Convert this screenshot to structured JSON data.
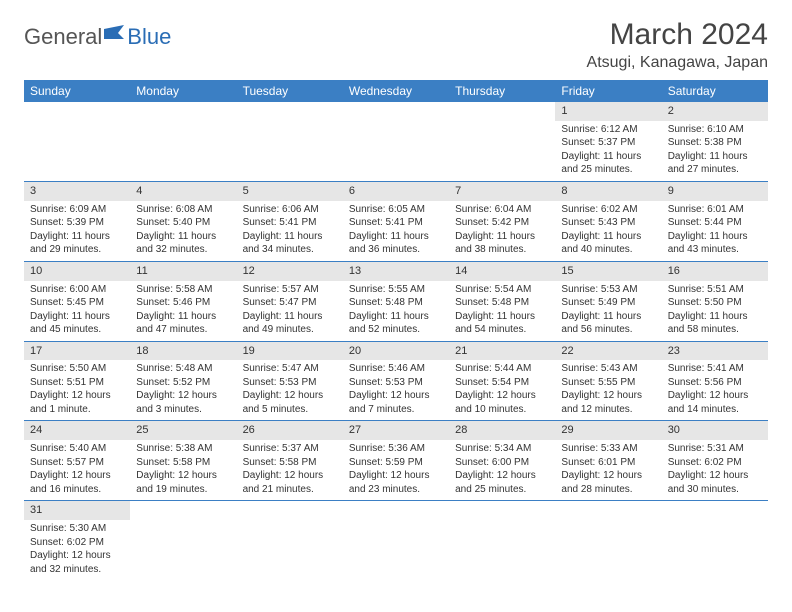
{
  "logo": {
    "part1": "General",
    "part2": "Blue"
  },
  "title": "March 2024",
  "location": "Atsugi, Kanagawa, Japan",
  "weekdays": [
    "Sunday",
    "Monday",
    "Tuesday",
    "Wednesday",
    "Thursday",
    "Friday",
    "Saturday"
  ],
  "colors": {
    "header_bg": "#3b7fc4",
    "header_text": "#ffffff",
    "daynum_bg": "#e6e6e6",
    "rule": "#3b7fc4",
    "logo_blue": "#2a6db5"
  },
  "weeks": [
    [
      null,
      null,
      null,
      null,
      null,
      {
        "n": "1",
        "sunrise": "Sunrise: 6:12 AM",
        "sunset": "Sunset: 5:37 PM",
        "daylight": "Daylight: 11 hours and 25 minutes."
      },
      {
        "n": "2",
        "sunrise": "Sunrise: 6:10 AM",
        "sunset": "Sunset: 5:38 PM",
        "daylight": "Daylight: 11 hours and 27 minutes."
      }
    ],
    [
      {
        "n": "3",
        "sunrise": "Sunrise: 6:09 AM",
        "sunset": "Sunset: 5:39 PM",
        "daylight": "Daylight: 11 hours and 29 minutes."
      },
      {
        "n": "4",
        "sunrise": "Sunrise: 6:08 AM",
        "sunset": "Sunset: 5:40 PM",
        "daylight": "Daylight: 11 hours and 32 minutes."
      },
      {
        "n": "5",
        "sunrise": "Sunrise: 6:06 AM",
        "sunset": "Sunset: 5:41 PM",
        "daylight": "Daylight: 11 hours and 34 minutes."
      },
      {
        "n": "6",
        "sunrise": "Sunrise: 6:05 AM",
        "sunset": "Sunset: 5:41 PM",
        "daylight": "Daylight: 11 hours and 36 minutes."
      },
      {
        "n": "7",
        "sunrise": "Sunrise: 6:04 AM",
        "sunset": "Sunset: 5:42 PM",
        "daylight": "Daylight: 11 hours and 38 minutes."
      },
      {
        "n": "8",
        "sunrise": "Sunrise: 6:02 AM",
        "sunset": "Sunset: 5:43 PM",
        "daylight": "Daylight: 11 hours and 40 minutes."
      },
      {
        "n": "9",
        "sunrise": "Sunrise: 6:01 AM",
        "sunset": "Sunset: 5:44 PM",
        "daylight": "Daylight: 11 hours and 43 minutes."
      }
    ],
    [
      {
        "n": "10",
        "sunrise": "Sunrise: 6:00 AM",
        "sunset": "Sunset: 5:45 PM",
        "daylight": "Daylight: 11 hours and 45 minutes."
      },
      {
        "n": "11",
        "sunrise": "Sunrise: 5:58 AM",
        "sunset": "Sunset: 5:46 PM",
        "daylight": "Daylight: 11 hours and 47 minutes."
      },
      {
        "n": "12",
        "sunrise": "Sunrise: 5:57 AM",
        "sunset": "Sunset: 5:47 PM",
        "daylight": "Daylight: 11 hours and 49 minutes."
      },
      {
        "n": "13",
        "sunrise": "Sunrise: 5:55 AM",
        "sunset": "Sunset: 5:48 PM",
        "daylight": "Daylight: 11 hours and 52 minutes."
      },
      {
        "n": "14",
        "sunrise": "Sunrise: 5:54 AM",
        "sunset": "Sunset: 5:48 PM",
        "daylight": "Daylight: 11 hours and 54 minutes."
      },
      {
        "n": "15",
        "sunrise": "Sunrise: 5:53 AM",
        "sunset": "Sunset: 5:49 PM",
        "daylight": "Daylight: 11 hours and 56 minutes."
      },
      {
        "n": "16",
        "sunrise": "Sunrise: 5:51 AM",
        "sunset": "Sunset: 5:50 PM",
        "daylight": "Daylight: 11 hours and 58 minutes."
      }
    ],
    [
      {
        "n": "17",
        "sunrise": "Sunrise: 5:50 AM",
        "sunset": "Sunset: 5:51 PM",
        "daylight": "Daylight: 12 hours and 1 minute."
      },
      {
        "n": "18",
        "sunrise": "Sunrise: 5:48 AM",
        "sunset": "Sunset: 5:52 PM",
        "daylight": "Daylight: 12 hours and 3 minutes."
      },
      {
        "n": "19",
        "sunrise": "Sunrise: 5:47 AM",
        "sunset": "Sunset: 5:53 PM",
        "daylight": "Daylight: 12 hours and 5 minutes."
      },
      {
        "n": "20",
        "sunrise": "Sunrise: 5:46 AM",
        "sunset": "Sunset: 5:53 PM",
        "daylight": "Daylight: 12 hours and 7 minutes."
      },
      {
        "n": "21",
        "sunrise": "Sunrise: 5:44 AM",
        "sunset": "Sunset: 5:54 PM",
        "daylight": "Daylight: 12 hours and 10 minutes."
      },
      {
        "n": "22",
        "sunrise": "Sunrise: 5:43 AM",
        "sunset": "Sunset: 5:55 PM",
        "daylight": "Daylight: 12 hours and 12 minutes."
      },
      {
        "n": "23",
        "sunrise": "Sunrise: 5:41 AM",
        "sunset": "Sunset: 5:56 PM",
        "daylight": "Daylight: 12 hours and 14 minutes."
      }
    ],
    [
      {
        "n": "24",
        "sunrise": "Sunrise: 5:40 AM",
        "sunset": "Sunset: 5:57 PM",
        "daylight": "Daylight: 12 hours and 16 minutes."
      },
      {
        "n": "25",
        "sunrise": "Sunrise: 5:38 AM",
        "sunset": "Sunset: 5:58 PM",
        "daylight": "Daylight: 12 hours and 19 minutes."
      },
      {
        "n": "26",
        "sunrise": "Sunrise: 5:37 AM",
        "sunset": "Sunset: 5:58 PM",
        "daylight": "Daylight: 12 hours and 21 minutes."
      },
      {
        "n": "27",
        "sunrise": "Sunrise: 5:36 AM",
        "sunset": "Sunset: 5:59 PM",
        "daylight": "Daylight: 12 hours and 23 minutes."
      },
      {
        "n": "28",
        "sunrise": "Sunrise: 5:34 AM",
        "sunset": "Sunset: 6:00 PM",
        "daylight": "Daylight: 12 hours and 25 minutes."
      },
      {
        "n": "29",
        "sunrise": "Sunrise: 5:33 AM",
        "sunset": "Sunset: 6:01 PM",
        "daylight": "Daylight: 12 hours and 28 minutes."
      },
      {
        "n": "30",
        "sunrise": "Sunrise: 5:31 AM",
        "sunset": "Sunset: 6:02 PM",
        "daylight": "Daylight: 12 hours and 30 minutes."
      }
    ],
    [
      {
        "n": "31",
        "sunrise": "Sunrise: 5:30 AM",
        "sunset": "Sunset: 6:02 PM",
        "daylight": "Daylight: 12 hours and 32 minutes."
      },
      null,
      null,
      null,
      null,
      null,
      null
    ]
  ]
}
